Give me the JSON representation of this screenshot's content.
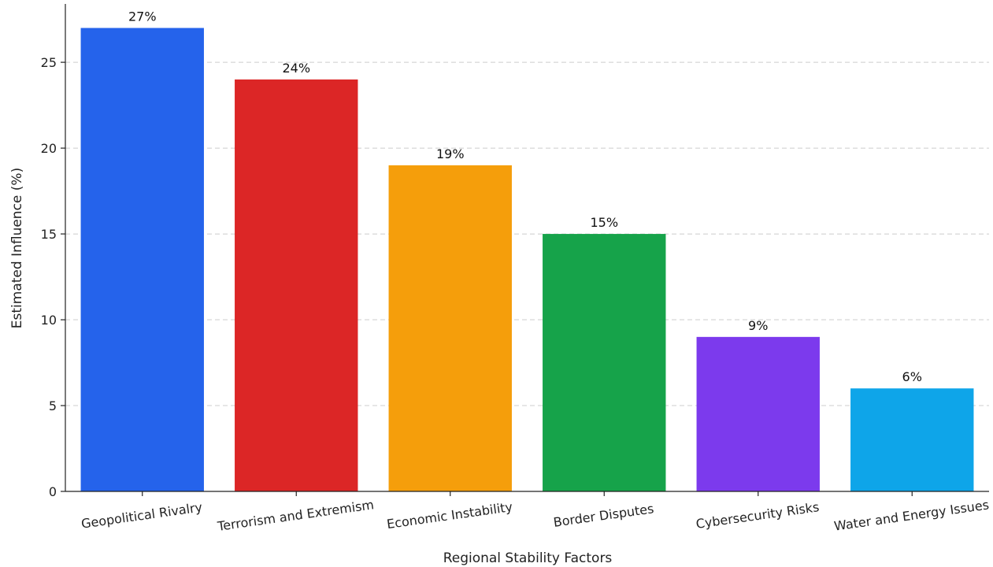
{
  "chart_data": {
    "type": "bar",
    "title": "",
    "xlabel": "Regional Stability Factors",
    "ylabel": "Estimated Influence (%)",
    "categories": [
      "Geopolitical Rivalry",
      "Terrorism and Extremism",
      "Economic Instability",
      "Border Disputes",
      "Cybersecurity Risks",
      "Water and Energy Issues"
    ],
    "values": [
      27,
      24,
      19,
      15,
      9,
      6
    ],
    "value_labels": [
      "27%",
      "24%",
      "19%",
      "15%",
      "9%",
      "6%"
    ],
    "colors": [
      "#2563eb",
      "#dc2626",
      "#f59e0b",
      "#16a34a",
      "#7c3aed",
      "#0ea5e9"
    ],
    "yticks": [
      "0",
      "5",
      "10",
      "15",
      "20",
      "25"
    ],
    "ylim": [
      0,
      28.4
    ],
    "grid": "y-dashed",
    "legend": "none"
  }
}
